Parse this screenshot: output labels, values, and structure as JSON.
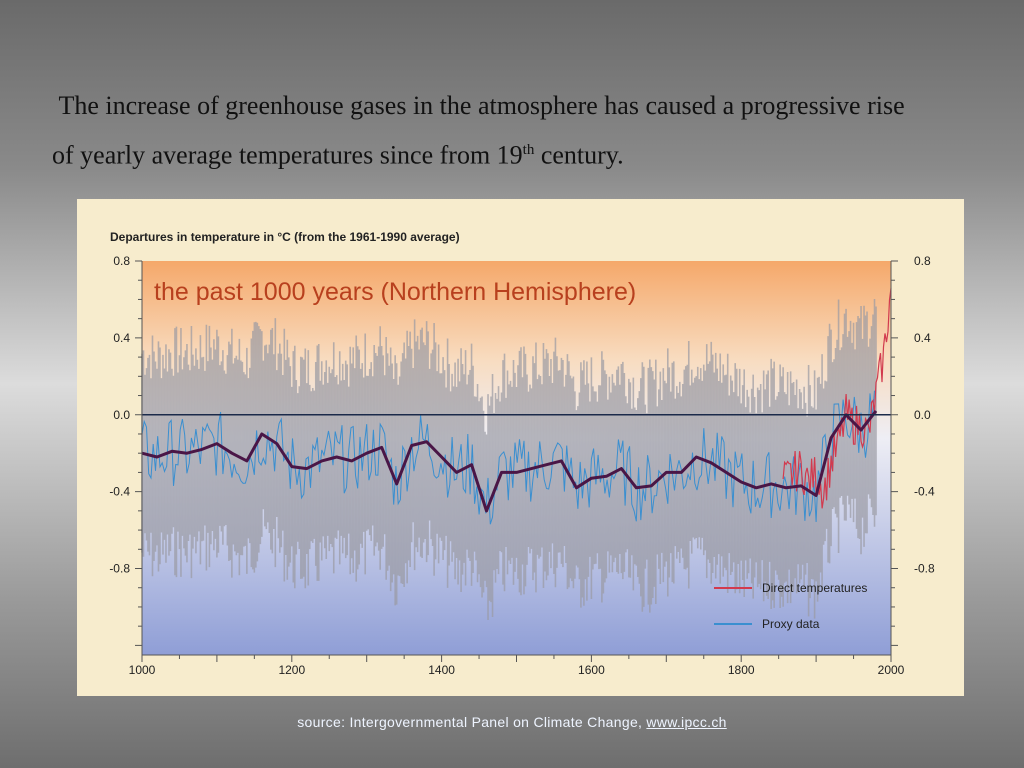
{
  "slide": {
    "line1": "The increase of greenhouse gases in the atmosphere has caused a progressive rise",
    "line2_pre": "of yearly average  temperatures since from 19",
    "line2_sup": "th",
    "line2_post": " century.",
    "source_text": "source: Intergovernmental Panel on Climate Change, ",
    "source_link": "www.ipcc.ch"
  },
  "colors": {
    "direct": "#d23a4e",
    "proxy": "#3a8fd0",
    "smooth": "#4a1646",
    "band": "#9a9aa2",
    "title": "#b8401e"
  },
  "chart_data": {
    "type": "line",
    "header": "Departures in temperature in °C (from the 1961-1990 average)",
    "title": "the past 1000 years (Northern Hemisphere)",
    "xlim": [
      1000,
      2000
    ],
    "ylim": [
      -1.25,
      0.8
    ],
    "x_ticks": [
      "1000",
      "1200",
      "1400",
      "1600",
      "1800",
      "2000"
    ],
    "x_tick_values": [
      1000,
      1200,
      1400,
      1600,
      1800,
      2000
    ],
    "y_ticks": [
      "0.8",
      "0.4",
      "0.0",
      "-0.4",
      "-0.8"
    ],
    "y_tick_values": [
      0.8,
      0.4,
      0.0,
      -0.4,
      -0.8
    ],
    "right_y_ticks": [
      "0.8",
      "0.4",
      "0.0",
      "-0.4",
      "-0.8"
    ],
    "legend_placement": "bottom-right",
    "legend": [
      {
        "label": "Direct temperatures",
        "color": "#d23a4e"
      },
      {
        "label": "Proxy data",
        "color": "#3a8fd0"
      }
    ],
    "series": [
      {
        "name": "Direct temperatures",
        "x": [
          1856,
          1870,
          1880,
          1890,
          1900,
          1910,
          1920,
          1930,
          1940,
          1950,
          1960,
          1970,
          1980,
          1990,
          2000
        ],
        "y": [
          -0.35,
          -0.3,
          -0.28,
          -0.35,
          -0.3,
          -0.4,
          -0.25,
          -0.15,
          0.0,
          -0.05,
          -0.05,
          -0.1,
          0.1,
          0.3,
          0.65
        ]
      },
      {
        "name": "Proxy data",
        "x": [
          1000,
          1020,
          1040,
          1060,
          1080,
          1100,
          1120,
          1140,
          1160,
          1180,
          1200,
          1220,
          1240,
          1260,
          1280,
          1300,
          1320,
          1340,
          1360,
          1380,
          1400,
          1420,
          1440,
          1460,
          1480,
          1500,
          1520,
          1540,
          1560,
          1580,
          1600,
          1620,
          1640,
          1660,
          1680,
          1700,
          1720,
          1740,
          1760,
          1780,
          1800,
          1820,
          1840,
          1860,
          1880,
          1900,
          1920,
          1940,
          1960,
          1980
        ],
        "y": [
          -0.2,
          -0.22,
          -0.19,
          -0.2,
          -0.18,
          -0.15,
          -0.2,
          -0.24,
          -0.1,
          -0.15,
          -0.27,
          -0.28,
          -0.24,
          -0.22,
          -0.24,
          -0.2,
          -0.17,
          -0.36,
          -0.16,
          -0.14,
          -0.22,
          -0.3,
          -0.26,
          -0.5,
          -0.3,
          -0.3,
          -0.28,
          -0.26,
          -0.24,
          -0.38,
          -0.33,
          -0.32,
          -0.28,
          -0.38,
          -0.37,
          -0.3,
          -0.3,
          -0.22,
          -0.25,
          -0.3,
          -0.35,
          -0.38,
          -0.36,
          -0.38,
          -0.37,
          -0.42,
          -0.12,
          0.0,
          -0.08,
          0.02
        ]
      }
    ]
  }
}
